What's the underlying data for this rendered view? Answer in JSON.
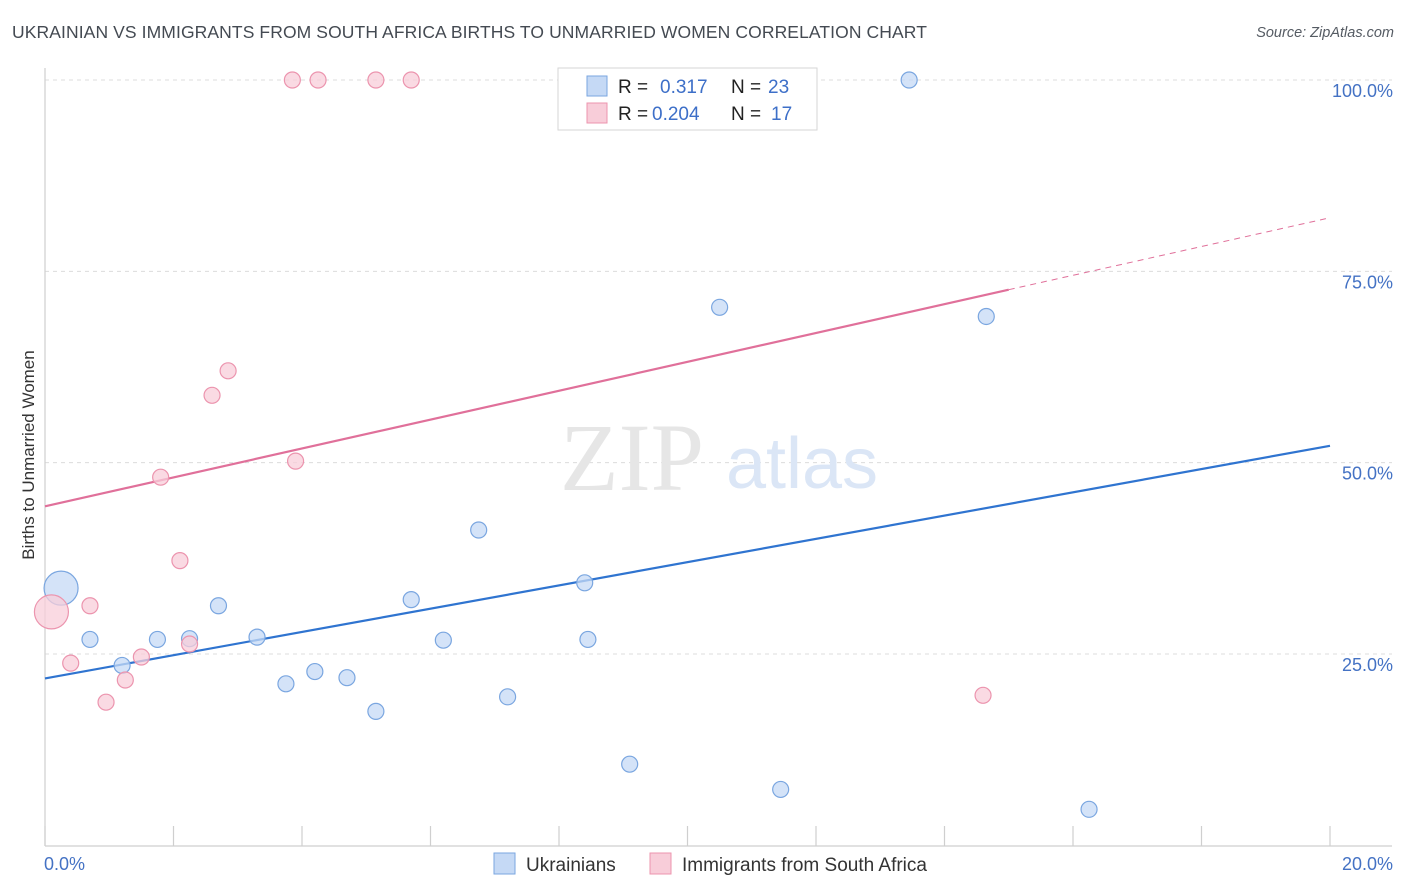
{
  "header": {
    "title": "UKRAINIAN VS IMMIGRANTS FROM SOUTH AFRICA BIRTHS TO UNMARRIED WOMEN CORRELATION CHART",
    "source": "Source: ZipAtlas.com"
  },
  "watermark": {
    "zip": "ZIP",
    "atlas": "atlas"
  },
  "colors": {
    "blue_fill": "#c5d9f5",
    "blue_stroke": "#7aa6e0",
    "blue_line": "#2f74d0",
    "pink_fill": "#f8cdd9",
    "pink_stroke": "#ec94ae",
    "pink_line": "#e0709a",
    "grid": "#dcdcdc",
    "tick_label": "#4472c4"
  },
  "chart_data": {
    "type": "scatter",
    "title": "UKRAINIAN VS IMMIGRANTS FROM SOUTH AFRICA BIRTHS TO UNMARRIED WOMEN CORRELATION CHART",
    "xlabel": "",
    "ylabel": "Births to Unmarried Women",
    "xlim": [
      0,
      20
    ],
    "ylim": [
      0,
      103
    ],
    "x_tick_labels": [
      {
        "value": 0,
        "label": "0.0%"
      },
      {
        "value": 20,
        "label": "20.0%"
      }
    ],
    "y_tick_labels": [
      {
        "value": 25,
        "label": "25.0%"
      },
      {
        "value": 50,
        "label": "50.0%"
      },
      {
        "value": 75,
        "label": "75.0%"
      },
      {
        "value": 100,
        "label": "100.0%"
      }
    ],
    "legend": {
      "position": "top-center",
      "rows": [
        {
          "r_label": "R =",
          "r_value": "0.317",
          "n_label": "N =",
          "n_value": "23"
        },
        {
          "r_label": "R =",
          "r_value": "0.204",
          "n_label": "N =",
          "n_value": "17"
        }
      ]
    },
    "series": [
      {
        "name": "Ukrainians",
        "color": "#c5d9f5",
        "points": [
          {
            "x": 0.25,
            "y": 33.6,
            "size": "large"
          },
          {
            "x": 0.7,
            "y": 26.9
          },
          {
            "x": 1.2,
            "y": 23.5
          },
          {
            "x": 1.75,
            "y": 26.9
          },
          {
            "x": 2.25,
            "y": 27.0
          },
          {
            "x": 2.7,
            "y": 31.3
          },
          {
            "x": 3.3,
            "y": 27.2
          },
          {
            "x": 3.75,
            "y": 21.1
          },
          {
            "x": 4.2,
            "y": 22.7
          },
          {
            "x": 4.7,
            "y": 21.9
          },
          {
            "x": 5.15,
            "y": 17.5
          },
          {
            "x": 5.7,
            "y": 32.1
          },
          {
            "x": 6.2,
            "y": 26.8
          },
          {
            "x": 6.75,
            "y": 41.2
          },
          {
            "x": 7.2,
            "y": 19.4
          },
          {
            "x": 8.4,
            "y": 34.3
          },
          {
            "x": 8.45,
            "y": 26.9
          },
          {
            "x": 9.1,
            "y": 10.6
          },
          {
            "x": 10.5,
            "y": 70.3
          },
          {
            "x": 11.45,
            "y": 7.3
          },
          {
            "x": 13.45,
            "y": 100.0
          },
          {
            "x": 14.65,
            "y": 69.1
          },
          {
            "x": 16.25,
            "y": 4.7
          }
        ],
        "trend": {
          "x0": 0,
          "y0": 21.8,
          "x1": 20,
          "y1": 52.2
        }
      },
      {
        "name": "Immigrants from South Africa",
        "color": "#f8cdd9",
        "points": [
          {
            "x": 0.1,
            "y": 30.5,
            "size": "large"
          },
          {
            "x": 0.4,
            "y": 23.8
          },
          {
            "x": 0.7,
            "y": 31.3
          },
          {
            "x": 0.95,
            "y": 18.7
          },
          {
            "x": 1.25,
            "y": 21.6
          },
          {
            "x": 1.5,
            "y": 24.6
          },
          {
            "x": 1.8,
            "y": 48.1
          },
          {
            "x": 2.1,
            "y": 37.2
          },
          {
            "x": 2.25,
            "y": 26.3
          },
          {
            "x": 2.6,
            "y": 58.8
          },
          {
            "x": 2.85,
            "y": 62.0
          },
          {
            "x": 3.85,
            "y": 100.0
          },
          {
            "x": 3.9,
            "y": 50.2
          },
          {
            "x": 4.25,
            "y": 100.0
          },
          {
            "x": 5.15,
            "y": 100.0
          },
          {
            "x": 5.7,
            "y": 100.0
          },
          {
            "x": 14.6,
            "y": 19.6
          }
        ],
        "trend": {
          "x0": 0,
          "y0": 44.3,
          "x1": 15.0,
          "y1": 72.6
        },
        "trend_extension": {
          "x0": 15.0,
          "y0": 72.6,
          "x1": 20,
          "y1": 82.0
        }
      }
    ]
  }
}
